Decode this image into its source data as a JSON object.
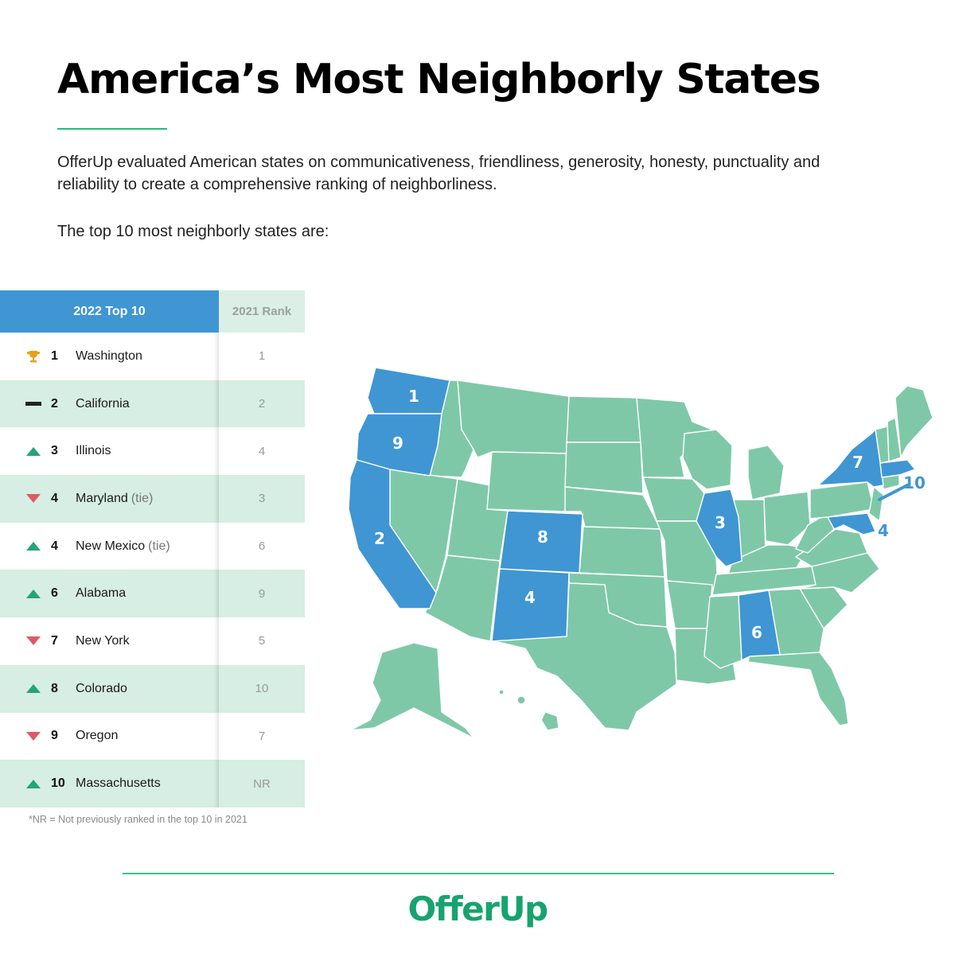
{
  "header": {
    "title": "America’s Most Neighborly States",
    "intro": "OfferUp evaluated American states on communicativeness, friendliness, generosity, honesty, punctuality and reliability to create a comprehensive ranking of neighborliness.",
    "lead": "The top 10 most neighborly states are:"
  },
  "table": {
    "col_main": "2022 Top 10",
    "col_prev": "2021 Rank",
    "rows": [
      {
        "rank": "1",
        "state": "Washington",
        "tie": "",
        "prev": "1",
        "trend": "trophy-icon"
      },
      {
        "rank": "2",
        "state": "California",
        "tie": "",
        "prev": "2",
        "trend": "no-change-icon"
      },
      {
        "rank": "3",
        "state": "Illinois",
        "tie": "",
        "prev": "4",
        "trend": "up-arrow-icon"
      },
      {
        "rank": "4",
        "state": "Maryland",
        "tie": "(tie)",
        "prev": "3",
        "trend": "down-arrow-icon"
      },
      {
        "rank": "4",
        "state": "New Mexico",
        "tie": "(tie)",
        "prev": "6",
        "trend": "up-arrow-icon"
      },
      {
        "rank": "6",
        "state": "Alabama",
        "tie": "",
        "prev": "9",
        "trend": "up-arrow-icon"
      },
      {
        "rank": "7",
        "state": "New York",
        "tie": "",
        "prev": "5",
        "trend": "down-arrow-icon"
      },
      {
        "rank": "8",
        "state": "Colorado",
        "tie": "",
        "prev": "10",
        "trend": "up-arrow-icon"
      },
      {
        "rank": "9",
        "state": "Oregon",
        "tie": "",
        "prev": "7",
        "trend": "down-arrow-icon"
      },
      {
        "rank": "10",
        "state": "Massachusetts",
        "tie": "",
        "prev": "NR",
        "trend": "up-arrow-icon"
      }
    ]
  },
  "footnote": "*NR = Not previously ranked in the top 10 in 2021",
  "map": {
    "highlight_color": "#3f96d3",
    "base_color": "#7ec8a8",
    "labels": {
      "washington": "1",
      "oregon": "9",
      "california": "2",
      "colorado": "8",
      "new_mexico": "4",
      "illinois": "3",
      "alabama": "6",
      "new_york": "7",
      "massachusetts": "10",
      "maryland": "4"
    }
  },
  "brand": "OfferUp",
  "colors": {
    "accent_blue": "#3f96d3",
    "accent_green": "#24a477",
    "down_red": "#df5a66",
    "row_alt": "#d6eee3",
    "brand_green": "#17a36f"
  }
}
